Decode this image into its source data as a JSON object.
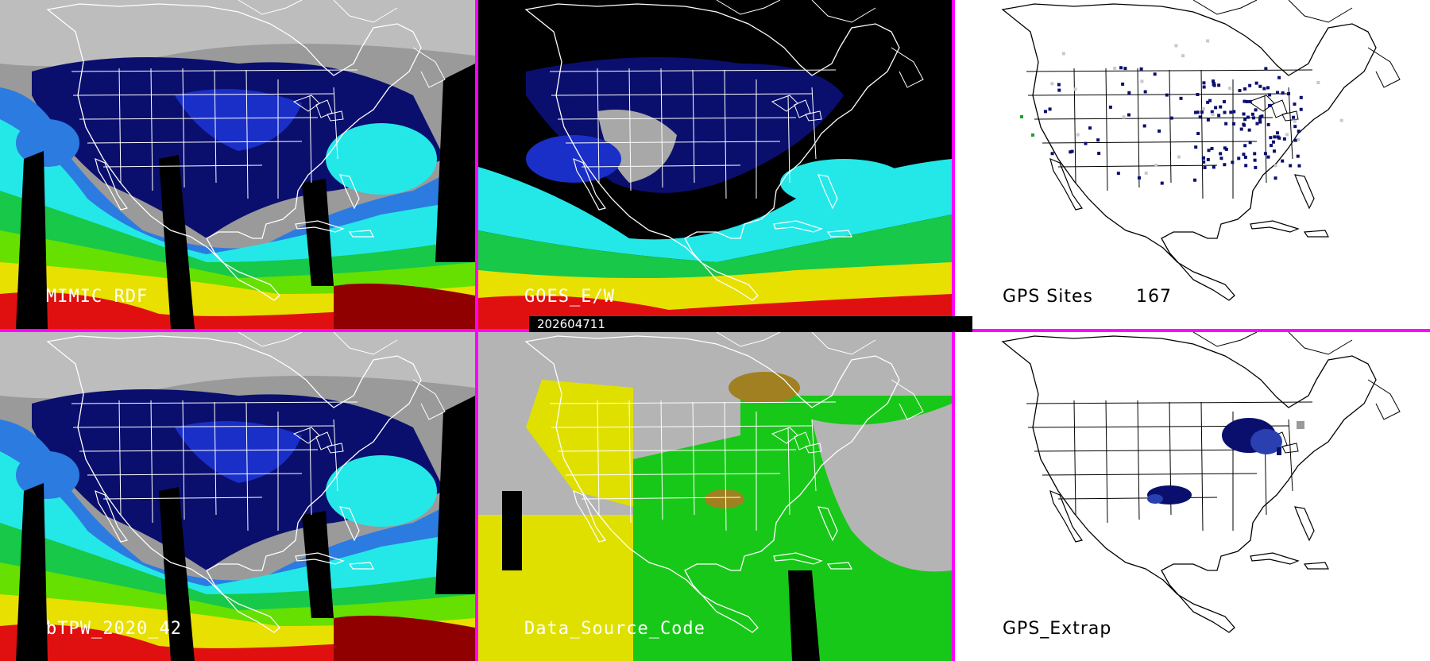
{
  "timestamp": "202604711",
  "colors": {
    "separator": "#ff00ff",
    "tpw_scale": [
      "#0a0f6e",
      "#1a2fc8",
      "#2c7be0",
      "#24e8e8",
      "#18c848",
      "#66e000",
      "#e8e000",
      "#e01010",
      "#900000"
    ],
    "source_code": {
      "satellite_ir": "#18c818",
      "microwave": "#e0e000",
      "missing": "#b4b4b4",
      "blend": "#a08020"
    },
    "gps_site": "#0a0f6e"
  },
  "panels": [
    {
      "id": "mimic",
      "label": "MIMIC RDF",
      "background": "tpw"
    },
    {
      "id": "goes",
      "label": "GOES_E/W",
      "background": "tpw-masked"
    },
    {
      "id": "gps_sites",
      "label": "GPS Sites",
      "count": "167",
      "background": "white"
    },
    {
      "id": "btpw",
      "label": "bTPW_2020_42",
      "background": "tpw"
    },
    {
      "id": "source",
      "label": "Data_Source_Code",
      "background": "source"
    },
    {
      "id": "gps_extrap",
      "label": "GPS_Extrap",
      "background": "white"
    }
  ]
}
